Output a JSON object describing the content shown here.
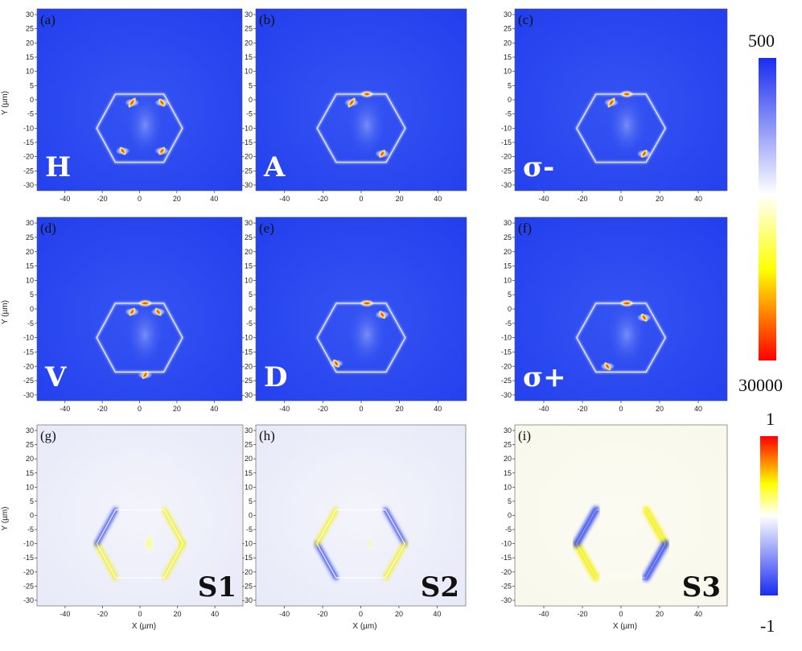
{
  "chart_data": [
    {
      "type": "heatmap",
      "panel": "(a)",
      "mode": "H",
      "xlabel": "",
      "ylabel": "Y (µm)",
      "xticks": [
        -40,
        -20,
        0,
        20,
        40
      ],
      "yticks": [
        30,
        25,
        20,
        15,
        10,
        5,
        0,
        -5,
        -10,
        -15,
        -20,
        -25,
        -30
      ],
      "xlim": [
        -55,
        55
      ],
      "ylim": [
        -32,
        32
      ],
      "colormap": "intensity",
      "hotspots": [
        {
          "x": -4,
          "y": -1
        },
        {
          "x": 12,
          "y": -1
        },
        {
          "x": -9,
          "y": -18
        },
        {
          "x": 12,
          "y": -18
        }
      ]
    },
    {
      "type": "heatmap",
      "panel": "(b)",
      "mode": "A",
      "xlabel": "",
      "ylabel": "",
      "xticks": [
        -40,
        -20,
        0,
        20,
        40
      ],
      "yticks": [
        30,
        25,
        20,
        15,
        10,
        5,
        0,
        -5,
        -10,
        -15,
        -20,
        -25,
        -30
      ],
      "xlim": [
        -55,
        55
      ],
      "ylim": [
        -32,
        32
      ],
      "colormap": "intensity",
      "hotspots": [
        {
          "x": -5,
          "y": -1
        },
        {
          "x": 3,
          "y": 2
        },
        {
          "x": 11,
          "y": -19
        }
      ]
    },
    {
      "type": "heatmap",
      "panel": "(c)",
      "mode": "σ-",
      "xlabel": "",
      "ylabel": "",
      "xticks": [
        -40,
        -20,
        0,
        20,
        40
      ],
      "yticks": [
        30,
        25,
        20,
        15,
        10,
        5,
        0,
        -5,
        -10,
        -15,
        -20,
        -25,
        -30
      ],
      "xlim": [
        -55,
        55
      ],
      "ylim": [
        -32,
        32
      ],
      "colormap": "intensity",
      "hotspots": [
        {
          "x": -5,
          "y": -1
        },
        {
          "x": 3,
          "y": 2
        },
        {
          "x": 12,
          "y": -19
        }
      ]
    },
    {
      "type": "heatmap",
      "panel": "(d)",
      "mode": "V",
      "xlabel": "",
      "ylabel": "Y (µm)",
      "xticks": [
        -40,
        -20,
        0,
        20,
        40
      ],
      "yticks": [
        30,
        25,
        20,
        15,
        10,
        5,
        0,
        -5,
        -10,
        -15,
        -20,
        -25,
        -30
      ],
      "xlim": [
        -55,
        55
      ],
      "ylim": [
        -32,
        32
      ],
      "colormap": "intensity",
      "hotspots": [
        {
          "x": 3,
          "y": 2
        },
        {
          "x": -4,
          "y": -1
        },
        {
          "x": 10,
          "y": -1
        },
        {
          "x": 3,
          "y": -23
        }
      ]
    },
    {
      "type": "heatmap",
      "panel": "(e)",
      "mode": "D",
      "xlabel": "",
      "ylabel": "",
      "xticks": [
        -40,
        -20,
        0,
        20,
        40
      ],
      "yticks": [
        30,
        25,
        20,
        15,
        10,
        5,
        0,
        -5,
        -10,
        -15,
        -20,
        -25,
        -30
      ],
      "xlim": [
        -55,
        55
      ],
      "ylim": [
        -32,
        32
      ],
      "colormap": "intensity",
      "hotspots": [
        {
          "x": 3,
          "y": 2
        },
        {
          "x": 11,
          "y": -2
        },
        {
          "x": -13,
          "y": -19
        }
      ]
    },
    {
      "type": "heatmap",
      "panel": "(f)",
      "mode": "σ+",
      "xlabel": "",
      "ylabel": "",
      "xticks": [
        -40,
        -20,
        0,
        20,
        40
      ],
      "yticks": [
        30,
        25,
        20,
        15,
        10,
        5,
        0,
        -5,
        -10,
        -15,
        -20,
        -25,
        -30
      ],
      "xlim": [
        -55,
        55
      ],
      "ylim": [
        -32,
        32
      ],
      "colormap": "intensity",
      "hotspots": [
        {
          "x": 3,
          "y": 2
        },
        {
          "x": 12,
          "y": -3
        },
        {
          "x": -7,
          "y": -20
        }
      ]
    },
    {
      "type": "heatmap",
      "panel": "(g)",
      "mode": "S1",
      "xlabel": "X (µm)",
      "ylabel": "Y (µm)",
      "xticks": [
        -40,
        -20,
        0,
        20,
        40
      ],
      "yticks": [
        30,
        25,
        20,
        15,
        10,
        5,
        0,
        -5,
        -10,
        -15,
        -20,
        -25,
        -30
      ],
      "xlim": [
        -55,
        55
      ],
      "ylim": [
        -32,
        32
      ],
      "colormap": "stokes"
    },
    {
      "type": "heatmap",
      "panel": "(h)",
      "mode": "S2",
      "xlabel": "X (µm)",
      "ylabel": "",
      "xticks": [
        -40,
        -20,
        0,
        20,
        40
      ],
      "yticks": [
        30,
        25,
        20,
        15,
        10,
        5,
        0,
        -5,
        -10,
        -15,
        -20,
        -25,
        -30
      ],
      "xlim": [
        -55,
        55
      ],
      "ylim": [
        -32,
        32
      ],
      "colormap": "stokes"
    },
    {
      "type": "heatmap",
      "panel": "(i)",
      "mode": "S3",
      "xlabel": "X (µm)",
      "ylabel": "",
      "xticks": [
        -40,
        -20,
        0,
        20,
        40
      ],
      "yticks": [
        30,
        25,
        20,
        15,
        10,
        5,
        0,
        -5,
        -10,
        -15,
        -20,
        -25,
        -30
      ],
      "xlim": [
        -55,
        55
      ],
      "ylim": [
        -32,
        32
      ],
      "colormap": "stokes"
    }
  ],
  "colorbars": {
    "intensity": {
      "max_label": "500",
      "min_label": "30000",
      "colors": [
        "#1a2cf0",
        "#ffffff",
        "#ffff00",
        "#ff0000"
      ]
    },
    "stokes": {
      "max_label": "1",
      "min_label": "-1",
      "colors": [
        "#ff0000",
        "#ffff00",
        "#ffffff",
        "#1a2cf0"
      ]
    }
  },
  "colors": {
    "field_blue": "#2a48ee",
    "stokes_bg": "#eef0fa",
    "hex_edge": "#dfe6ff"
  }
}
